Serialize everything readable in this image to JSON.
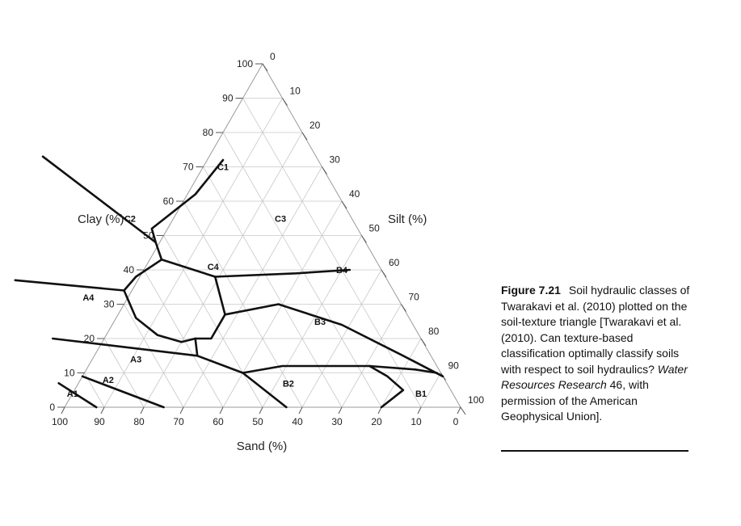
{
  "axes": {
    "clay": {
      "label": "Clay (%)",
      "ticks": [
        0,
        10,
        20,
        30,
        40,
        50,
        60,
        70,
        80,
        90,
        100
      ]
    },
    "silt": {
      "label": "Silt (%)",
      "ticks": [
        0,
        10,
        20,
        30,
        40,
        50,
        60,
        70,
        80,
        90,
        100
      ]
    },
    "sand": {
      "label": "Sand (%)",
      "ticks": [
        100,
        90,
        80,
        70,
        60,
        50,
        40,
        30,
        20,
        10,
        0
      ]
    }
  },
  "classes": [
    {
      "name": "C1",
      "sand": 25,
      "clay": 70
    },
    {
      "name": "C2",
      "sand": 56,
      "clay": 55
    },
    {
      "name": "C3",
      "sand": 18,
      "clay": 55
    },
    {
      "name": "C4",
      "sand": 42,
      "clay": 41
    },
    {
      "name": "A4",
      "sand": 78,
      "clay": 32
    },
    {
      "name": "B4",
      "sand": 10,
      "clay": 40
    },
    {
      "name": "B3",
      "sand": 23,
      "clay": 25
    },
    {
      "name": "A3",
      "sand": 75,
      "clay": 14
    },
    {
      "name": "A2",
      "sand": 85,
      "clay": 8
    },
    {
      "name": "B2",
      "sand": 40,
      "clay": 7
    },
    {
      "name": "A1",
      "sand": 96,
      "clay": 4
    },
    {
      "name": "B1",
      "sand": 8,
      "clay": 4
    }
  ],
  "boundaries": [
    {
      "id": "c2-c1-upper",
      "points": [
        [
          69,
          73
        ],
        [
          53,
          48
        ]
      ]
    },
    {
      "id": "c1-c3-upper",
      "points": [
        [
          53,
          48
        ],
        [
          52,
          52
        ],
        [
          36,
          62
        ],
        [
          24,
          72
        ]
      ]
    },
    {
      "id": "c2-c3-divider",
      "points": [
        [
          53,
          48
        ],
        [
          54,
          43
        ]
      ]
    },
    {
      "id": "c2-c4-top",
      "points": [
        [
          54,
          43
        ],
        [
          63,
          38
        ],
        [
          68,
          34
        ]
      ]
    },
    {
      "id": "c4-c3-top",
      "points": [
        [
          54,
          43
        ],
        [
          43,
          38
        ],
        [
          22,
          39
        ],
        [
          8,
          40
        ]
      ]
    },
    {
      "id": "a4-top",
      "points": [
        [
          68,
          34
        ],
        [
          94,
          37
        ]
      ]
    },
    {
      "id": "c4-left",
      "points": [
        [
          68,
          34
        ],
        [
          69,
          26
        ],
        [
          66,
          21
        ],
        [
          61,
          19
        ],
        [
          57,
          20
        ]
      ]
    },
    {
      "id": "c4-right",
      "points": [
        [
          43,
          38
        ],
        [
          46,
          27
        ],
        [
          53,
          20
        ],
        [
          57,
          20
        ]
      ]
    },
    {
      "id": "c4-bottom",
      "points": [
        [
          57,
          20
        ],
        [
          59,
          15
        ]
      ]
    },
    {
      "id": "a4-a3",
      "points": [
        [
          93,
          20
        ],
        [
          59,
          15
        ]
      ]
    },
    {
      "id": "a3-b2",
      "points": [
        [
          59,
          15
        ],
        [
          50,
          10
        ],
        [
          44,
          0
        ]
      ]
    },
    {
      "id": "b4-b3",
      "points": [
        [
          46,
          27
        ],
        [
          31,
          30
        ],
        [
          18,
          24
        ],
        [
          7,
          15
        ],
        [
          0,
          9
        ]
      ]
    },
    {
      "id": "b3-b2",
      "points": [
        [
          50,
          10
        ],
        [
          39,
          12
        ],
        [
          31,
          12
        ],
        [
          17,
          12
        ],
        [
          6,
          11
        ],
        [
          1,
          10
        ]
      ]
    },
    {
      "id": "b2-b1",
      "points": [
        [
          17,
          12
        ],
        [
          14,
          9
        ],
        [
          12,
          5
        ],
        [
          20,
          0
        ]
      ]
    },
    {
      "id": "a3-a2",
      "points": [
        [
          91,
          9
        ],
        [
          75,
          0
        ]
      ]
    },
    {
      "id": "a1-a2",
      "points": [
        [
          98,
          7
        ],
        [
          92,
          0
        ]
      ]
    }
  ],
  "caption": {
    "label": "Figure 7.21",
    "text_before": "Soil hydraulic classes of Twarakavi et al. (2010) plotted on the soil-texture triangle [Twarakavi et al. (2010). Can texture-based classification optimally classify soils with respect to soil hydraulics? ",
    "journal": "Water Resources Research",
    "text_after": " 46, with permission of the American Geophysical Union]."
  }
}
